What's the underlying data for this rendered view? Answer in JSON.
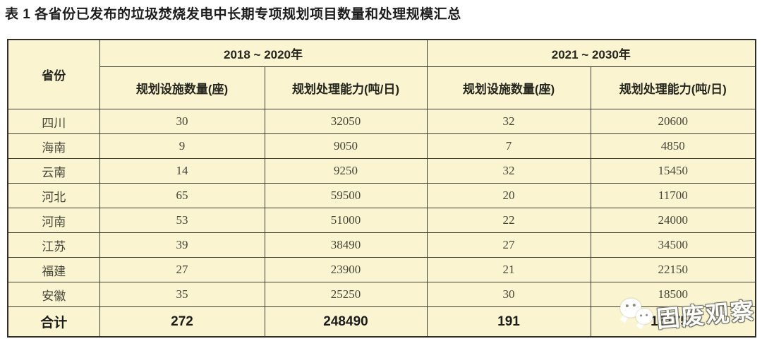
{
  "page": {
    "title": "表 1 各省份已发布的垃圾焚烧发电中长期专项规划项目数量和处理规模汇总"
  },
  "table": {
    "corner_header": "省份",
    "period_headers": [
      "2018 ~ 2020年",
      "2021 ~ 2030年"
    ],
    "sub_headers": [
      "规划设施数量(座)",
      "规划处理能力(吨/日)",
      "规划设施数量(座)",
      "规划处理能力(吨/日)"
    ],
    "rows": [
      {
        "province": "四川",
        "values": [
          "30",
          "32050",
          "32",
          "20600"
        ]
      },
      {
        "province": "海南",
        "values": [
          "9",
          "9050",
          "7",
          "4850"
        ]
      },
      {
        "province": "云南",
        "values": [
          "14",
          "9250",
          "32",
          "15450"
        ]
      },
      {
        "province": "河北",
        "values": [
          "65",
          "59500",
          "20",
          "11700"
        ]
      },
      {
        "province": "河南",
        "values": [
          "53",
          "51000",
          "22",
          "24000"
        ]
      },
      {
        "province": "江苏",
        "values": [
          "39",
          "38490",
          "27",
          "34500"
        ]
      },
      {
        "province": "福建",
        "values": [
          "27",
          "23900",
          "21",
          "22150"
        ]
      },
      {
        "province": "安徽",
        "values": [
          "35",
          "25250",
          "30",
          "18500"
        ]
      }
    ],
    "totals": {
      "label": "合计",
      "values": [
        "272",
        "248490",
        "191",
        "151750"
      ]
    }
  },
  "watermark": {
    "text": "固废观察",
    "icon": "wechat-bubbles-icon"
  },
  "colors": {
    "cell_bg": "#faf5d0",
    "border": "#3c3c30",
    "title_text": "#1c1c1c",
    "data_text": "#45453a"
  }
}
